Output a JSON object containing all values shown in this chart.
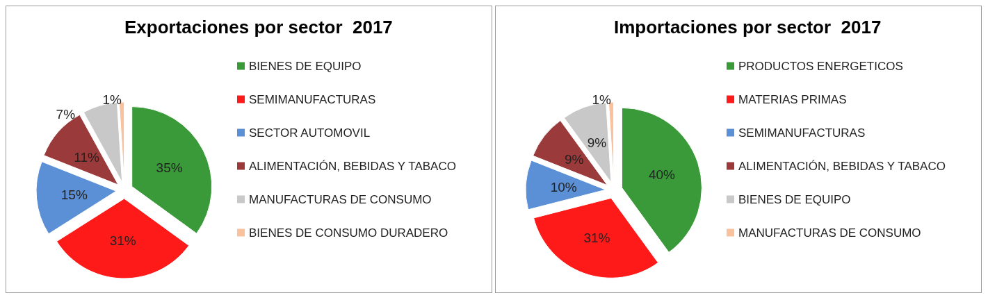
{
  "chart_data": [
    {
      "type": "pie",
      "title": "Exportaciones por sector  2017",
      "legend": "right",
      "categories": [
        "BIENES DE EQUIPO",
        "SEMIMANUFACTURAS",
        "SECTOR AUTOMOVIL",
        "ALIMENTACIÓN, BEBIDAS Y TABACO",
        "MANUFACTURAS DE CONSUMO",
        "BIENES DE CONSUMO DURADERO"
      ],
      "values": [
        35,
        31,
        15,
        11,
        7,
        1
      ],
      "value_labels": [
        "35%",
        "31%",
        "15%",
        "11%",
        "7%",
        "1%"
      ],
      "colors": [
        "#3a9a3a",
        "#ff1a1a",
        "#5b8fd6",
        "#9b3a3a",
        "#c8c8c8",
        "#f9c29c"
      ]
    },
    {
      "type": "pie",
      "title": "Importaciones por sector  2017",
      "legend": "right",
      "categories": [
        "PRODUCTOS ENERGETICOS",
        "MATERIAS PRIMAS",
        "SEMIMANUFACTURAS",
        "ALIMENTACIÓN, BEBIDAS Y TABACO",
        "BIENES DE EQUIPO",
        "MANUFACTURAS DE CONSUMO"
      ],
      "values": [
        40,
        31,
        10,
        9,
        9,
        1
      ],
      "value_labels": [
        "40%",
        "31%",
        "10%",
        "9%",
        "9%",
        "1%"
      ],
      "colors": [
        "#3a9a3a",
        "#ff1a1a",
        "#5b8fd6",
        "#9b3a3a",
        "#c8c8c8",
        "#f9c29c"
      ]
    }
  ]
}
